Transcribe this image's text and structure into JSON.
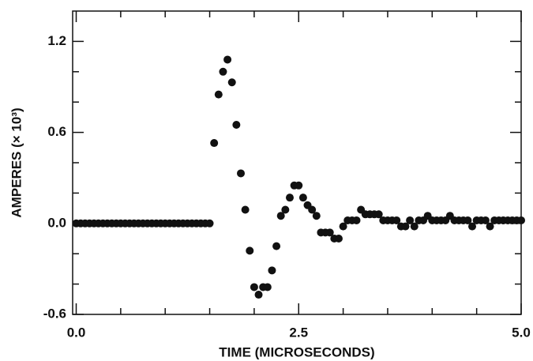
{
  "chart_data": {
    "type": "scatter",
    "xlabel": "TIME (MICROSECONDS)",
    "ylabel": "AMPERES (× 10³)",
    "color": "#111111",
    "xlim": [
      -0.04,
      5.0
    ],
    "ylim": [
      -0.6,
      1.4
    ],
    "xticks": [
      {
        "value": 0,
        "label": "0.0"
      },
      2.5,
      {
        "value": 5,
        "label": "5.0"
      }
    ],
    "yticks": [
      -0.6,
      {
        "value": 0,
        "label": "0.0"
      },
      0.6,
      1.2
    ],
    "xminorticks": [
      0.5,
      1,
      1.5,
      2,
      3,
      3.5,
      4,
      4.5
    ],
    "yminorticks": [
      -0.4,
      -0.2,
      0.2,
      0.4,
      0.8,
      1.0
    ],
    "x": [
      0,
      0.05,
      0.1,
      0.15,
      0.2,
      0.25,
      0.3,
      0.35,
      0.4,
      0.45,
      0.5,
      0.55,
      0.6,
      0.65,
      0.7,
      0.75,
      0.8,
      0.85,
      0.9,
      0.95,
      1.0,
      1.05,
      1.1,
      1.15,
      1.2,
      1.25,
      1.3,
      1.35,
      1.4,
      1.45,
      1.5,
      1.55,
      1.6,
      1.65,
      1.7,
      1.75,
      1.8,
      1.85,
      1.9,
      1.95,
      2.0,
      2.05,
      2.1,
      2.15,
      2.2,
      2.25,
      2.3,
      2.35,
      2.4,
      2.45,
      2.5,
      2.55,
      2.6,
      2.65,
      2.7,
      2.75,
      2.8,
      2.85,
      2.9,
      2.95,
      3.0,
      3.05,
      3.1,
      3.15,
      3.2,
      3.25,
      3.3,
      3.35,
      3.4,
      3.45,
      3.5,
      3.55,
      3.6,
      3.65,
      3.7,
      3.75,
      3.8,
      3.85,
      3.9,
      3.95,
      4.0,
      4.05,
      4.1,
      4.15,
      4.2,
      4.25,
      4.3,
      4.35,
      4.4,
      4.45,
      4.5,
      4.55,
      4.6,
      4.65,
      4.7,
      4.75,
      4.8,
      4.85,
      4.9,
      4.95,
      5.0
    ],
    "values": [
      0,
      0,
      0,
      0,
      0,
      0,
      0,
      0,
      0,
      0,
      0,
      0,
      0,
      0,
      0,
      0,
      0,
      0,
      0,
      0,
      0,
      0,
      0,
      0,
      0,
      0,
      0,
      0,
      0,
      0,
      0,
      0.53,
      0.85,
      1.0,
      1.08,
      0.93,
      0.65,
      0.33,
      0.09,
      -0.18,
      -0.42,
      -0.47,
      -0.42,
      -0.42,
      -0.31,
      -0.15,
      0.05,
      0.09,
      0.17,
      0.25,
      0.25,
      0.17,
      0.12,
      0.09,
      0.05,
      -0.06,
      -0.06,
      -0.06,
      -0.1,
      -0.1,
      -0.02,
      0.02,
      0.02,
      0.02,
      0.09,
      0.06,
      0.06,
      0.06,
      0.06,
      0.02,
      0.02,
      0.02,
      0.02,
      -0.02,
      -0.02,
      0.02,
      -0.02,
      0.02,
      0.02,
      0.05,
      0.02,
      0.02,
      0.02,
      0.02,
      0.05,
      0.02,
      0.02,
      0.02,
      0.02,
      -0.02,
      0.02,
      0.02,
      0.02,
      -0.02,
      0.02,
      0.02,
      0.02,
      0.02,
      0.02,
      0.02,
      0.02
    ]
  }
}
